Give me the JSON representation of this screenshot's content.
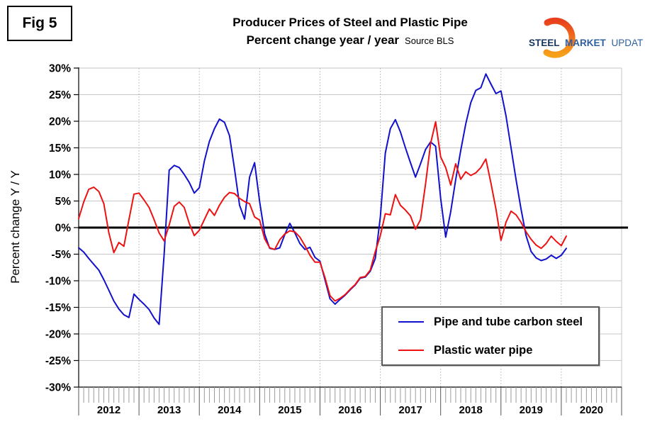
{
  "figure_label": "Fig 5",
  "header": {
    "title_line1": "Producer Prices of Steel and Plastic Pipe",
    "title_line2": "Percent change year / year",
    "source": "Source BLS"
  },
  "logo": {
    "word1": "STEEL",
    "word2": "MARKET",
    "word3": "UPDATE",
    "word1_color": "#17365d",
    "word23_color": "#2e5f9e",
    "swoosh_color_top": "#e8401c",
    "swoosh_color_bottom": "#f7a11a"
  },
  "chart_data": {
    "type": "line",
    "title": "Producer Prices of Steel and Plastic Pipe",
    "subtitle": "Percent change year / year",
    "ylabel": "Percent change Y / Y",
    "xlabel": "",
    "ylim": [
      -30,
      30
    ],
    "y_tick_step": 5,
    "y_ticks": [
      "30%",
      "25%",
      "20%",
      "15%",
      "10%",
      "5%",
      "0%",
      "-5%",
      "-10%",
      "-15%",
      "-20%",
      "-25%",
      "-30%"
    ],
    "x_year_labels": [
      "2012",
      "2013",
      "2014",
      "2015",
      "2016",
      "2017",
      "2018",
      "2019",
      "2020"
    ],
    "x_frequency": "monthly",
    "x_start": "2012-01",
    "x_end": "2020-02",
    "grid": {
      "horizontal": "solid-gray",
      "vertical": "dotted-gray-at-year-boundaries",
      "zero_line": "thick-black"
    },
    "legend_position": "inside-lower-right",
    "colors": {
      "gridline": "#c6c6c6",
      "dotted_gridline": "#b0b0b0",
      "axis": "#000000"
    },
    "series": [
      {
        "name": "Pipe and tube carbon steel",
        "color": "#1111cc",
        "values": [
          -3.8,
          -4.6,
          -5.8,
          -6.9,
          -8.0,
          -9.8,
          -11.8,
          -13.8,
          -15.3,
          -16.4,
          -16.9,
          -12.5,
          -13.5,
          -14.4,
          -15.4,
          -17.0,
          -18.2,
          -5.0,
          10.8,
          11.7,
          11.3,
          10.0,
          8.5,
          6.5,
          7.5,
          12.5,
          16.2,
          18.6,
          20.4,
          19.8,
          17.3,
          11.0,
          4.2,
          1.6,
          9.5,
          12.2,
          4.9,
          -1.2,
          -3.9,
          -4.1,
          -3.8,
          -1.3,
          0.8,
          -1.0,
          -3.0,
          -4.1,
          -3.7,
          -5.6,
          -6.3,
          -9.8,
          -13.4,
          -14.4,
          -13.5,
          -12.7,
          -11.7,
          -10.8,
          -9.5,
          -9.3,
          -8.2,
          -5.8,
          2.0,
          14.0,
          18.6,
          20.3,
          18.0,
          15.0,
          12.2,
          9.5,
          12.0,
          14.7,
          16.1,
          15.3,
          5.5,
          -1.8,
          3.0,
          9.0,
          14.5,
          19.5,
          23.5,
          25.8,
          26.3,
          28.9,
          27.0,
          25.2,
          25.7,
          21.0,
          15.0,
          9.0,
          3.5,
          -1.5,
          -4.5,
          -5.7,
          -6.2,
          -5.9,
          -5.2,
          -5.8,
          -5.2,
          -3.9
        ]
      },
      {
        "name": "Plastic water pipe",
        "color": "#ee1111",
        "values": [
          1.7,
          4.8,
          7.2,
          7.6,
          6.8,
          4.5,
          -1.0,
          -4.7,
          -2.8,
          -3.5,
          1.5,
          6.3,
          6.5,
          5.2,
          3.8,
          1.5,
          -1.0,
          -2.5,
          0.5,
          4.0,
          4.8,
          3.8,
          0.8,
          -1.5,
          -0.5,
          1.5,
          3.5,
          2.3,
          4.2,
          5.7,
          6.6,
          6.4,
          5.5,
          4.9,
          4.5,
          2.0,
          1.4,
          -2.1,
          -3.8,
          -4.1,
          -2.3,
          -1.2,
          -0.6,
          -0.8,
          -1.8,
          -3.4,
          -5.2,
          -6.5,
          -6.5,
          -9.4,
          -12.8,
          -13.8,
          -13.3,
          -12.6,
          -11.6,
          -10.7,
          -9.4,
          -9.2,
          -8.0,
          -4.5,
          -1.5,
          2.6,
          2.4,
          6.2,
          4.2,
          3.3,
          2.2,
          -0.3,
          1.5,
          8.2,
          15.8,
          19.9,
          13.3,
          11.3,
          8.0,
          12.0,
          9.1,
          10.5,
          9.8,
          10.3,
          11.3,
          12.9,
          8.4,
          3.5,
          -2.4,
          1.0,
          3.1,
          2.4,
          1.0,
          -0.8,
          -2.2,
          -3.3,
          -3.9,
          -3.0,
          -1.6,
          -2.6,
          -3.4,
          -1.6
        ]
      }
    ]
  }
}
